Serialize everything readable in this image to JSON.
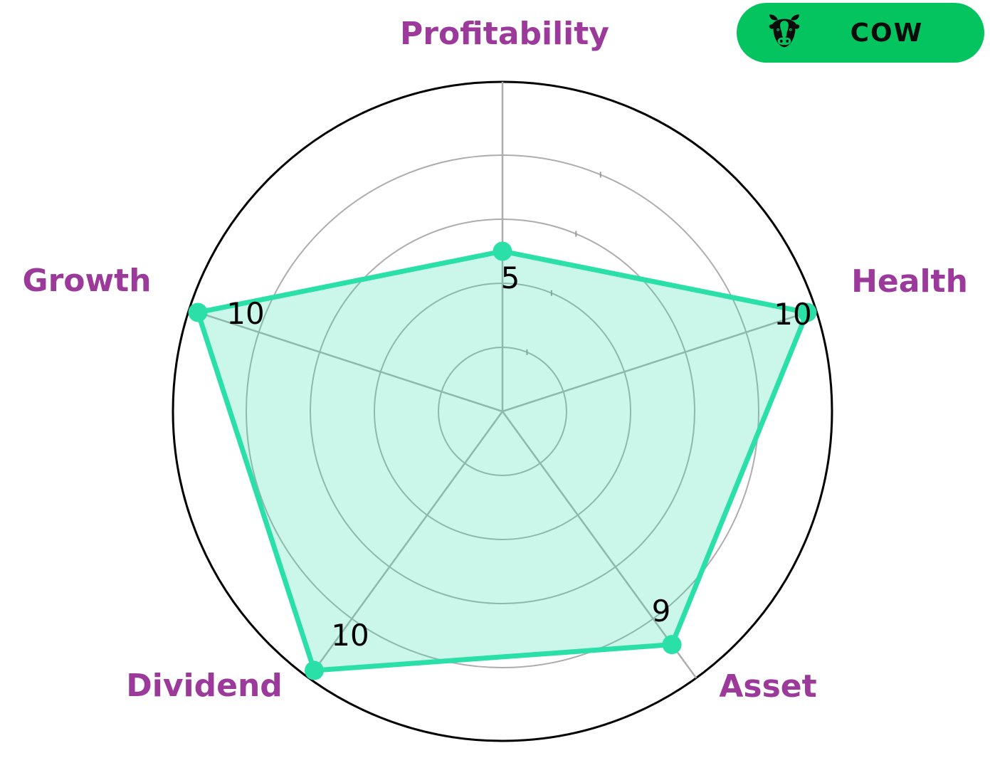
{
  "badge": {
    "label": "COW",
    "icon": "cow-icon",
    "bg_color": "#04C45F",
    "text_color": "#0b0b0b"
  },
  "chart_data": {
    "type": "radar",
    "categories": [
      "Profitability",
      "Health",
      "Asset",
      "Dividend",
      "Growth"
    ],
    "values": [
      5,
      10,
      9,
      10,
      10
    ],
    "max": 10,
    "grid_rings": [
      2,
      4,
      6,
      8
    ],
    "title": "",
    "legend": "COW",
    "category_label_color": "#9C3A9C",
    "series_color": "#2BE0A8",
    "series_fill_color": "rgba(43,224,168,0.25)",
    "grid_color": "#ADADAD",
    "tick_color": "#9A9A9A",
    "outline_color": "#000000",
    "value_label_color": "#000000"
  }
}
